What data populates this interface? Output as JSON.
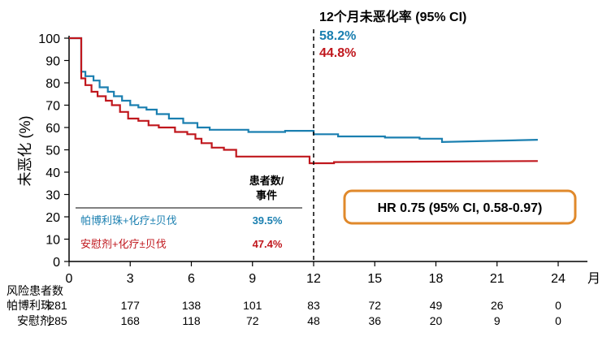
{
  "chart_data": {
    "type": "line",
    "ylabel": "未恶化 (%)",
    "x_unit_label": "月",
    "xlim": [
      0,
      24
    ],
    "ylim": [
      0,
      100
    ],
    "x_ticks": [
      0,
      3,
      6,
      9,
      12,
      15,
      18,
      21,
      24
    ],
    "y_ticks": [
      0,
      10,
      20,
      30,
      40,
      50,
      60,
      70,
      80,
      90,
      100
    ],
    "series": [
      {
        "name": "帕博利珠+化疗±贝伐",
        "color": "#1a7fb0",
        "pct_label": "39.5%",
        "x": [
          0,
          0.6,
          0.6,
          0.8,
          0.8,
          1.2,
          1.2,
          1.5,
          1.5,
          1.9,
          1.9,
          2.2,
          2.2,
          2.6,
          2.6,
          3.0,
          3.0,
          3.4,
          3.4,
          3.8,
          3.8,
          4.3,
          4.3,
          4.9,
          4.9,
          5.6,
          5.6,
          6.3,
          6.3,
          6.9,
          6.9,
          8.8,
          8.8,
          10.6,
          10.6,
          12.0,
          12.0,
          13.2,
          13.2,
          15.5,
          15.5,
          17.2,
          17.2,
          18.3,
          18.3,
          23.0
        ],
        "y": [
          100,
          100,
          85,
          85,
          83,
          83,
          81,
          81,
          78,
          78,
          76,
          76,
          74,
          74,
          72,
          72,
          70,
          70,
          69,
          69,
          68,
          68,
          66,
          66,
          64,
          64,
          62,
          62,
          60,
          60,
          59,
          59,
          58,
          58,
          58.5,
          58.5,
          57,
          57,
          56,
          56,
          55.5,
          55.5,
          55,
          55,
          53.5,
          54.5
        ]
      },
      {
        "name": "安慰剂+化疗±贝伐",
        "color": "#c0171d",
        "pct_label": "47.4%",
        "x": [
          0,
          0.6,
          0.6,
          0.8,
          0.8,
          1.1,
          1.1,
          1.4,
          1.4,
          1.8,
          1.8,
          2.1,
          2.1,
          2.5,
          2.5,
          2.9,
          2.9,
          3.4,
          3.4,
          3.9,
          3.9,
          4.4,
          4.4,
          5.2,
          5.2,
          5.8,
          5.8,
          6.2,
          6.2,
          6.5,
          6.5,
          7.0,
          7.0,
          7.6,
          7.6,
          8.2,
          8.2,
          11.8,
          11.8,
          13.0,
          13.0,
          23.0
        ],
        "y": [
          100,
          100,
          82,
          82,
          79,
          79,
          76,
          76,
          74,
          74,
          72,
          72,
          70,
          70,
          67,
          67,
          64,
          64,
          63,
          63,
          61,
          61,
          60,
          60,
          58,
          58,
          57,
          57,
          55,
          55,
          53,
          53,
          51,
          51,
          50,
          50,
          47,
          47,
          44,
          44,
          44.5,
          45
        ]
      }
    ],
    "cutoff_x": 12,
    "twelve_month": {
      "title": "12个月未恶化率 (95% CI)",
      "values": [
        "58.2%",
        "44.8%"
      ]
    },
    "legend": {
      "header_line1": "患者数/",
      "header_line2": "事件"
    },
    "hr_text": "HR 0.75 (95% CI, 0.58-0.97)",
    "risk_table": {
      "title": "风险患者数",
      "rows": [
        {
          "label": "帕博利珠",
          "values": [
            "281",
            "177",
            "138",
            "101",
            "83",
            "72",
            "49",
            "26",
            "0"
          ]
        },
        {
          "label": "安慰剂",
          "values": [
            "285",
            "168",
            "118",
            "72",
            "48",
            "36",
            "20",
            "9",
            "0"
          ]
        }
      ]
    },
    "colors": {
      "blue": "#1a7fb0",
      "red": "#c0171d",
      "hr_border": "#e0892b",
      "axis": "#000000"
    }
  }
}
